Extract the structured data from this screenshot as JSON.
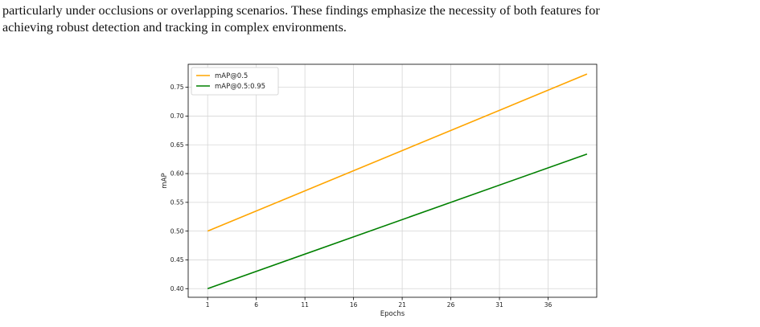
{
  "paragraph": {
    "line1": "particularly under occlusions or overlapping scenarios. These findings emphasize the necessity of both features for",
    "line2": "achieving robust detection and tracking in complex environments."
  },
  "chart_data": {
    "type": "line",
    "xlabel": "Epochs",
    "ylabel": "mAP",
    "xlim": [
      -1,
      41
    ],
    "ylim": [
      0.385,
      0.79
    ],
    "x_ticks": [
      1,
      6,
      11,
      16,
      21,
      26,
      31,
      36
    ],
    "y_ticks": [
      0.4,
      0.45,
      0.5,
      0.55,
      0.6,
      0.65,
      0.7,
      0.75
    ],
    "grid": true,
    "legend_position": "top-left",
    "series": [
      {
        "name": "mAP@0.5",
        "color": "#ffa500",
        "x": [
          1,
          40
        ],
        "y": [
          0.5,
          0.773
        ]
      },
      {
        "name": "mAP@0.5:0.95",
        "color": "#008000",
        "x": [
          1,
          40
        ],
        "y": [
          0.4,
          0.634
        ]
      }
    ]
  }
}
